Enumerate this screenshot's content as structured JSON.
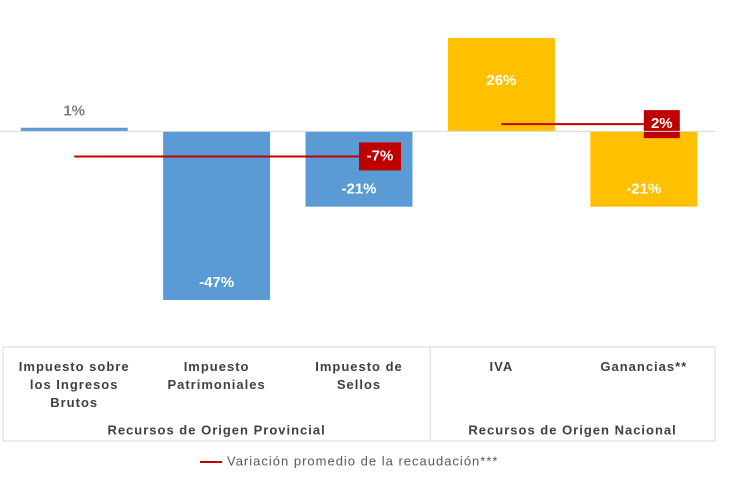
{
  "chart_data": {
    "type": "bar",
    "categories": [
      "Impuesto sobre los Ingresos Brutos",
      "Impuesto Patrimoniales",
      "Impuesto de Sellos",
      "IVA",
      "Ganancias**"
    ],
    "values": [
      1,
      -47,
      -21,
      26,
      -21
    ],
    "value_labels": [
      "1%",
      "-47%",
      "-21%",
      "26%",
      "-21%"
    ],
    "groups": [
      {
        "name": "Recursos de Origen Provincial",
        "count": 3,
        "color": "#5b9bd5",
        "average": -7,
        "average_label": "-7%"
      },
      {
        "name": "Recursos de Origen Nacional",
        "count": 2,
        "color": "#ffc000",
        "average": 2,
        "average_label": "2%"
      }
    ],
    "average_color": "#c00000",
    "legend": "Variación promedio de la recaudación***"
  }
}
